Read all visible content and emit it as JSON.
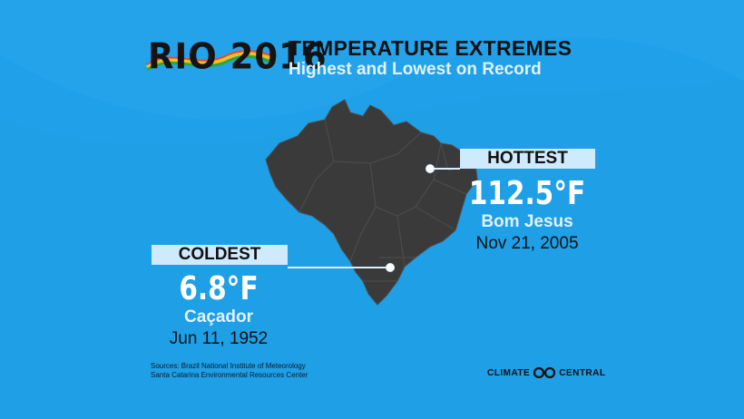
{
  "header": {
    "logo_text": "RIO 2016",
    "title": "TEMPERATURE EXTREMES",
    "subtitle": "Highest and Lowest on Record"
  },
  "hottest": {
    "label": "HOTTEST",
    "temperature": "112.5°F",
    "location": "Bom Jesus",
    "date": "Nov 21, 2005"
  },
  "coldest": {
    "label": "COLDEST",
    "temperature": "6.8°F",
    "location": "Caçador",
    "date": "Jun 11, 1952"
  },
  "sources": {
    "line1": "Sources: Brazil National Institute of Meteorology",
    "line2": "Santa Catarina Environmental Resources Center"
  },
  "brand": {
    "word1": "CLIMATE",
    "word2": "CENTRAL"
  },
  "colors": {
    "background": "#1e9fe6",
    "map": "#3a3a3a",
    "label_box": "#cfeafd"
  }
}
